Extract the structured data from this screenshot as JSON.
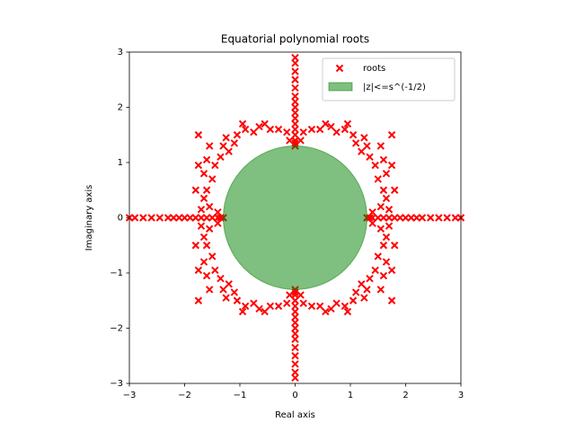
{
  "chart_data": {
    "type": "scatter",
    "title": "Equatorial polynomial roots",
    "xlabel": "Real axis",
    "ylabel": "Imaginary axis",
    "xlim": [
      -3,
      3
    ],
    "ylim": [
      -3,
      3
    ],
    "xticks": [
      {
        "value": -3,
        "label": "−3"
      },
      {
        "value": -2,
        "label": "−2"
      },
      {
        "value": -1,
        "label": "−1"
      },
      0,
      1,
      2,
      3
    ],
    "yticks": [
      {
        "value": -3,
        "label": "−3"
      },
      {
        "value": -2,
        "label": "−2"
      },
      {
        "value": -1,
        "label": "−1"
      },
      0,
      1,
      2,
      3
    ],
    "legend": "upper right",
    "series": [
      {
        "name": "roots",
        "color": "red",
        "x": [
          0.15,
          0.3,
          0.45,
          0.55,
          0.65,
          0.75,
          0.9,
          0.95,
          1.05,
          1.1,
          1.2,
          1.3,
          1.25,
          1.35,
          1.45,
          1.5,
          1.6,
          1.65,
          1.55,
          1.7,
          1.65,
          1.75,
          1.75,
          1.8,
          1.55,
          1.6,
          0.1,
          1.4,
          -0.15,
          -0.3,
          -0.45,
          -0.55,
          -0.65,
          -0.75,
          -0.9,
          -0.95,
          -1.05,
          -1.1,
          -1.2,
          -1.3,
          -1.25,
          -1.35,
          -1.45,
          -1.5,
          -1.6,
          -1.65,
          -1.55,
          -1.7,
          -1.65,
          -1.75,
          -1.75,
          -1.8,
          -1.55,
          -1.6,
          -0.1,
          -1.4,
          -0.15,
          -0.3,
          -0.45,
          -0.55,
          -0.65,
          -0.75,
          -0.9,
          -0.95,
          -1.05,
          -1.1,
          -1.2,
          -1.3,
          -1.25,
          -1.35,
          -1.45,
          -1.5,
          -1.6,
          -1.65,
          -1.55,
          -1.7,
          -1.65,
          -1.75,
          -1.75,
          -1.8,
          -1.55,
          -1.6,
          -0.1,
          -1.4,
          0.15,
          0.3,
          0.45,
          0.55,
          0.65,
          0.75,
          0.9,
          0.95,
          1.05,
          1.1,
          1.2,
          1.3,
          1.25,
          1.35,
          1.45,
          1.5,
          1.6,
          1.65,
          1.55,
          1.7,
          1.65,
          1.75,
          1.75,
          1.8,
          1.55,
          1.6,
          0.1,
          1.4,
          1.3,
          1.35,
          1.4,
          1.5,
          1.6,
          1.7,
          1.8,
          1.9,
          2,
          2.1,
          2.2,
          2.3,
          2.45,
          2.6,
          2.75,
          2.9,
          3,
          -1.3,
          -1.35,
          -1.4,
          -1.5,
          -1.6,
          -1.7,
          -1.8,
          -1.9,
          -2,
          -2.1,
          -2.2,
          -2.3,
          -2.45,
          -2.6,
          -2.75,
          -2.9,
          -3,
          0,
          0,
          0,
          0,
          0,
          0,
          0,
          0,
          0,
          0,
          0,
          0,
          0,
          0,
          0,
          0,
          0,
          0,
          0,
          0,
          0,
          0,
          0,
          0,
          0,
          0,
          0,
          0,
          0,
          0,
          0,
          0
        ],
        "values": [
          1.55,
          1.6,
          1.6,
          1.7,
          1.65,
          1.55,
          1.6,
          1.7,
          1.5,
          1.35,
          1.2,
          1.3,
          1.45,
          1.1,
          0.95,
          0.7,
          0.5,
          0.35,
          0.2,
          0.15,
          0.8,
          0.95,
          1.5,
          0.5,
          1.3,
          1.05,
          1.4,
          0.1,
          1.55,
          1.6,
          1.6,
          1.7,
          1.65,
          1.55,
          1.6,
          1.7,
          1.5,
          1.35,
          1.2,
          1.3,
          1.45,
          1.1,
          0.95,
          0.7,
          0.5,
          0.35,
          0.2,
          0.15,
          0.8,
          0.95,
          1.5,
          0.5,
          1.3,
          1.05,
          1.4,
          0.1,
          -1.55,
          -1.6,
          -1.6,
          -1.7,
          -1.65,
          -1.55,
          -1.6,
          -1.7,
          -1.5,
          -1.35,
          -1.2,
          -1.3,
          -1.45,
          -1.1,
          -0.95,
          -0.7,
          -0.5,
          -0.35,
          -0.2,
          -0.15,
          -0.8,
          -0.95,
          -1.5,
          -0.5,
          -1.3,
          -1.05,
          -1.4,
          -0.1,
          -1.55,
          -1.6,
          -1.6,
          -1.7,
          -1.65,
          -1.55,
          -1.6,
          -1.7,
          -1.5,
          -1.35,
          -1.2,
          -1.3,
          -1.45,
          -1.1,
          -0.95,
          -0.7,
          -0.5,
          -0.35,
          -0.2,
          -0.15,
          -0.8,
          -0.95,
          -1.5,
          -0.5,
          -1.3,
          -1.05,
          -1.4,
          -0.1,
          0,
          0,
          0,
          0,
          0,
          0,
          0,
          0,
          0,
          0,
          0,
          0,
          0,
          0,
          0,
          0,
          0,
          0,
          0,
          0,
          0,
          0,
          0,
          0,
          0,
          0,
          0,
          0,
          0,
          0,
          0,
          0,
          0,
          0,
          1.3,
          1.35,
          1.4,
          1.5,
          1.6,
          1.7,
          1.8,
          1.9,
          2,
          2.1,
          2.2,
          2.35,
          2.5,
          2.65,
          2.8,
          2.9,
          -1.3,
          -1.35,
          -1.4,
          -1.5,
          -1.6,
          -1.7,
          -1.8,
          -1.9,
          -2,
          -2.1,
          -2.2,
          -2.35,
          -2.5,
          -2.65,
          -2.8,
          -2.9
        ]
      }
    ],
    "circle": {
      "name": "|z|<=s^(-1/2)",
      "color": "green",
      "radius": 1.3
    }
  }
}
